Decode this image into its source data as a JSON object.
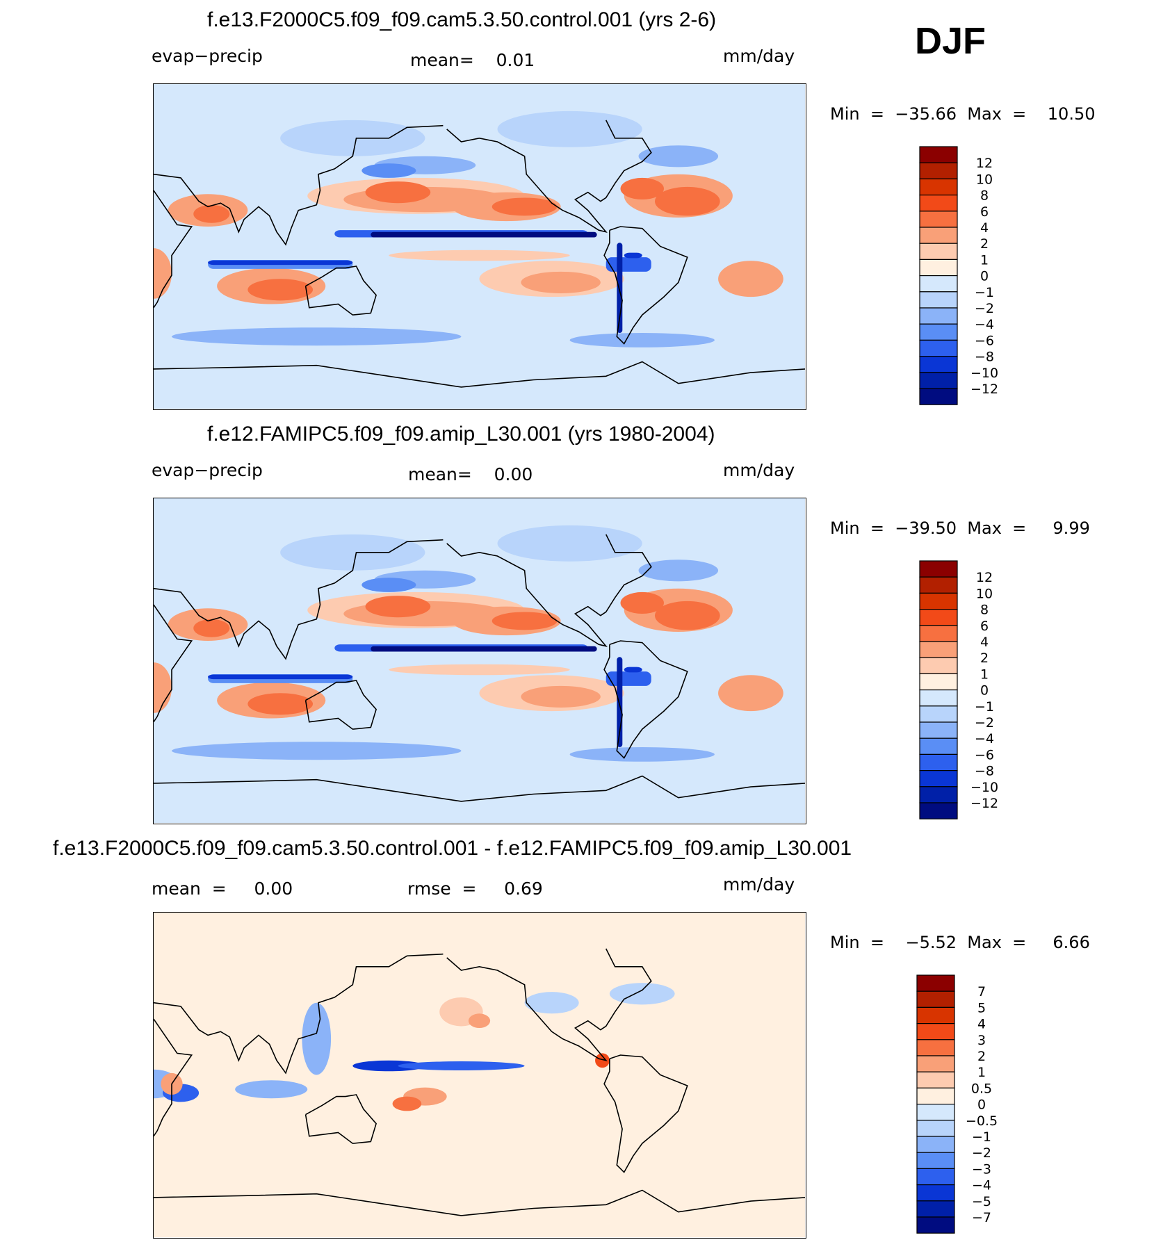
{
  "season": "DJF",
  "panels": [
    {
      "title": "f.e13.F2000C5.f09_f09.cam5.3.50.control.001 (yrs 2-6)",
      "left_label": "evap−precip",
      "center_label": "mean=    0.01",
      "right_label": "mm/day",
      "minmax": "Min  =  −35.66  Max  =    10.50",
      "levels": [
        "12",
        "10",
        "8",
        "6",
        "4",
        "2",
        "1",
        "0",
        "−1",
        "−2",
        "−4",
        "−6",
        "−8",
        "−10",
        "−12"
      ]
    },
    {
      "title": "f.e12.FAMIPC5.f09_f09.amip_L30.001 (yrs 1980-2004)",
      "left_label": "evap−precip",
      "center_label": "mean=    0.00",
      "right_label": "mm/day",
      "minmax": "Min  =  −39.50  Max  =     9.99",
      "levels": [
        "12",
        "10",
        "8",
        "6",
        "4",
        "2",
        "1",
        "0",
        "−1",
        "−2",
        "−4",
        "−6",
        "−8",
        "−10",
        "−12"
      ]
    },
    {
      "title": "f.e13.F2000C5.f09_f09.cam5.3.50.control.001 - f.e12.FAMIPC5.f09_f09.amip_L30.001",
      "left_label": "mean  =     0.00",
      "center_label": "rmse  =     0.69",
      "right_label": "mm/day",
      "minmax": "Min  =    −5.52  Max  =     6.66",
      "levels": [
        "7",
        "5",
        "4",
        "3",
        "2",
        "1",
        "0.5",
        "0",
        "−0.5",
        "−1",
        "−2",
        "−3",
        "−4",
        "−5",
        "−7"
      ]
    }
  ],
  "colors": {
    "scale": [
      "#8b0000",
      "#b22000",
      "#d83400",
      "#f24a18",
      "#f77040",
      "#f9a078",
      "#fdcbb0",
      "#fff0e0",
      "#d5e8fc",
      "#b8d4fb",
      "#8bb3f8",
      "#5a8ef5",
      "#2d60ee",
      "#0a36d5",
      "#0020a8",
      "#000c80"
    ]
  },
  "chart_data": [
    {
      "type": "heatmap",
      "title": "f.e13.F2000C5.f09_f09.cam5.3.50.control.001 (yrs 2-6)",
      "variable": "evap−precip",
      "units": "mm/day",
      "mean": 0.01,
      "min": -35.66,
      "max": 10.5,
      "contour_levels": [
        -12,
        -10,
        -8,
        -6,
        -4,
        -2,
        -1,
        0,
        1,
        2,
        4,
        6,
        8,
        10,
        12
      ]
    },
    {
      "type": "heatmap",
      "title": "f.e12.FAMIPC5.f09_f09.amip_L30.001 (yrs 1980-2004)",
      "variable": "evap−precip",
      "units": "mm/day",
      "mean": 0.0,
      "min": -39.5,
      "max": 9.99,
      "contour_levels": [
        -12,
        -10,
        -8,
        -6,
        -4,
        -2,
        -1,
        0,
        1,
        2,
        4,
        6,
        8,
        10,
        12
      ]
    },
    {
      "type": "heatmap",
      "title": "f.e13.F2000C5.f09_f09.cam5.3.50.control.001 - f.e12.FAMIPC5.f09_f09.amip_L30.001",
      "units": "mm/day",
      "mean": 0.0,
      "rmse": 0.69,
      "min": -5.52,
      "max": 6.66,
      "contour_levels": [
        -7,
        -5,
        -4,
        -3,
        -2,
        -1,
        -0.5,
        0,
        0.5,
        1,
        2,
        3,
        4,
        5,
        7
      ]
    }
  ]
}
